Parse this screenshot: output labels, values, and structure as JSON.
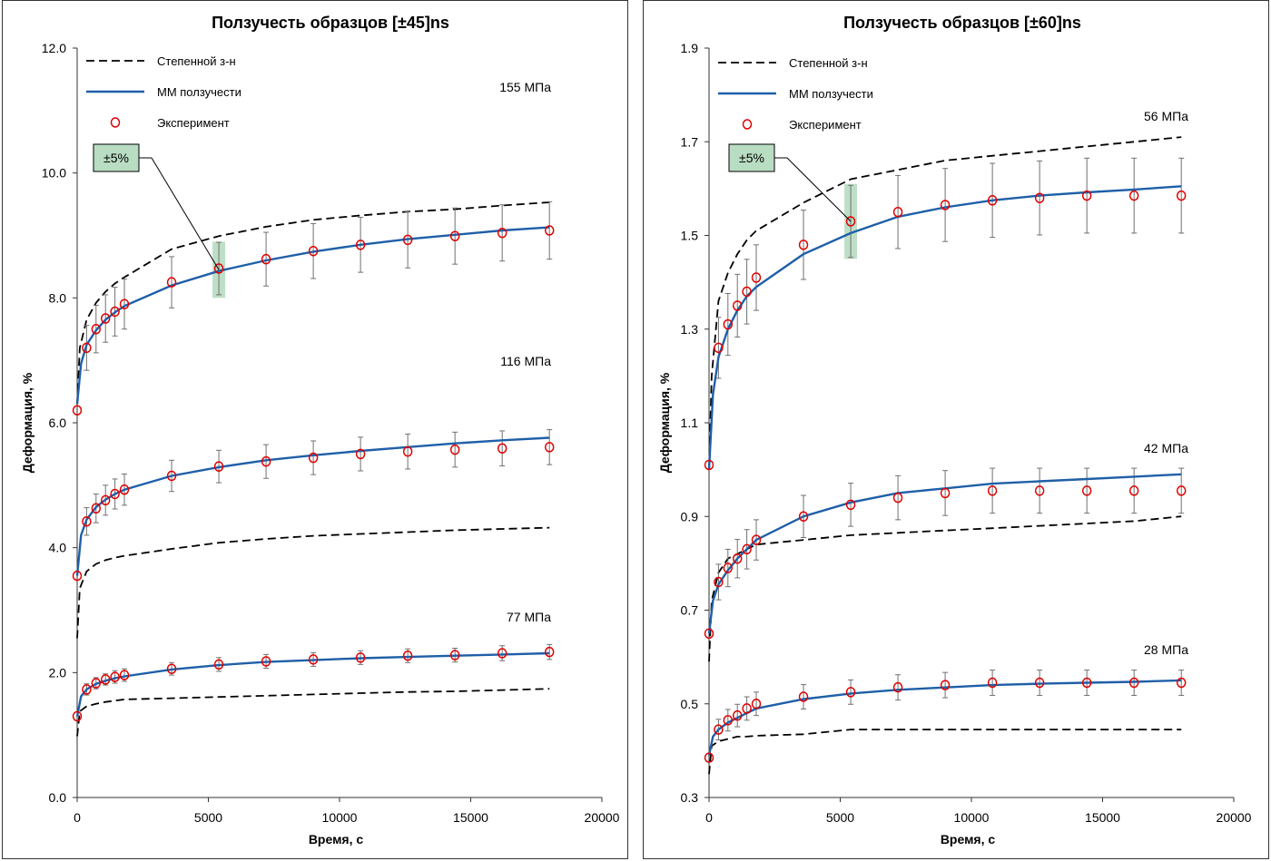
{
  "colors": {
    "model": "#1f5fa8",
    "power_law": "#000000",
    "experiment": "#e00000",
    "band": "#a8d4b4",
    "errorbar": "#707070"
  },
  "chart_data": [
    {
      "type": "line",
      "title": "Ползучесть образцов [±45]ns",
      "xlabel": "Время, с",
      "ylabel": "Деформация, %",
      "xlim": [
        0,
        20000
      ],
      "ylim": [
        0,
        12
      ],
      "x_ticks": [
        "0",
        "5000",
        "10000",
        "15000",
        "20000"
      ],
      "y_ticks": [
        "0.0",
        "2.0",
        "4.0",
        "6.0",
        "8.0",
        "10.0",
        "12.0"
      ],
      "legend": [
        "Степенной з-н",
        "ММ ползучести",
        "Эксперимент"
      ],
      "legend_position": "top-left",
      "grid": false,
      "tolerance_label": "±5%",
      "tolerance_point": {
        "x": 5400,
        "y": 8.45,
        "ylow": 8.0,
        "yhigh": 8.9
      },
      "groups": [
        {
          "label": "155 МПа",
          "exp_x": [
            0,
            360,
            720,
            1080,
            1440,
            1800,
            3600,
            5400,
            7200,
            9000,
            10800,
            12600,
            14400,
            16200,
            18000
          ],
          "exp_y": [
            6.2,
            7.2,
            7.5,
            7.67,
            7.78,
            7.9,
            8.25,
            8.47,
            8.62,
            8.75,
            8.85,
            8.93,
            8.99,
            9.04,
            9.08
          ],
          "err": [
            0,
            0.36,
            0.38,
            0.38,
            0.39,
            0.4,
            0.41,
            0.42,
            0.43,
            0.44,
            0.44,
            0.45,
            0.45,
            0.45,
            0.46
          ],
          "model_x": [
            0,
            150,
            360,
            720,
            1080,
            1440,
            1800,
            3600,
            5400,
            7200,
            9000,
            10800,
            12600,
            14400,
            16200,
            18000
          ],
          "model_y": [
            6.3,
            6.95,
            7.25,
            7.48,
            7.65,
            7.77,
            7.87,
            8.2,
            8.43,
            8.6,
            8.74,
            8.85,
            8.94,
            9.01,
            9.08,
            9.13
          ],
          "power_x": [
            0,
            100,
            360,
            720,
            1080,
            1440,
            1800,
            3600,
            5400,
            7200,
            9000,
            10800,
            12600,
            14400,
            16200,
            18000
          ],
          "power_y": [
            6.3,
            7.2,
            7.65,
            7.92,
            8.1,
            8.23,
            8.33,
            8.78,
            8.99,
            9.14,
            9.25,
            9.32,
            9.38,
            9.42,
            9.48,
            9.53
          ]
        },
        {
          "label": "116 МПа",
          "exp_x": [
            0,
            360,
            720,
            1080,
            1440,
            1800,
            3600,
            5400,
            7200,
            9000,
            10800,
            12600,
            14400,
            16200,
            18000
          ],
          "exp_y": [
            3.55,
            4.42,
            4.63,
            4.76,
            4.86,
            4.93,
            5.15,
            5.3,
            5.38,
            5.44,
            5.5,
            5.54,
            5.57,
            5.59,
            5.61
          ],
          "err": [
            0,
            0.22,
            0.23,
            0.24,
            0.24,
            0.25,
            0.25,
            0.26,
            0.27,
            0.27,
            0.27,
            0.28,
            0.28,
            0.28,
            0.28
          ],
          "model_x": [
            0,
            150,
            360,
            720,
            1080,
            1440,
            1800,
            3600,
            5400,
            7200,
            9000,
            10800,
            12600,
            14400,
            16200,
            18000
          ],
          "model_y": [
            3.55,
            4.2,
            4.45,
            4.65,
            4.77,
            4.86,
            4.93,
            5.15,
            5.29,
            5.4,
            5.48,
            5.55,
            5.61,
            5.67,
            5.72,
            5.76
          ],
          "power_x": [
            0,
            100,
            360,
            720,
            1080,
            1440,
            1800,
            3600,
            5400,
            7200,
            9000,
            10800,
            12600,
            14400,
            16200,
            18000
          ],
          "power_y": [
            2.55,
            3.35,
            3.62,
            3.74,
            3.8,
            3.84,
            3.87,
            3.98,
            4.08,
            4.14,
            4.19,
            4.22,
            4.25,
            4.28,
            4.3,
            4.32
          ]
        },
        {
          "label": "77 МПа",
          "exp_x": [
            0,
            360,
            720,
            1080,
            1440,
            1800,
            3600,
            5400,
            7200,
            9000,
            10800,
            12600,
            14400,
            16200,
            18000
          ],
          "exp_y": [
            1.3,
            1.73,
            1.83,
            1.89,
            1.93,
            1.96,
            2.06,
            2.13,
            2.18,
            2.21,
            2.24,
            2.27,
            2.28,
            2.31,
            2.33
          ],
          "err": [
            0,
            0.09,
            0.09,
            0.09,
            0.1,
            0.1,
            0.1,
            0.11,
            0.11,
            0.11,
            0.11,
            0.11,
            0.11,
            0.12,
            0.12
          ],
          "model_x": [
            0,
            150,
            360,
            720,
            1080,
            1440,
            1800,
            3600,
            5400,
            7200,
            9000,
            10800,
            12600,
            14400,
            16200,
            18000
          ],
          "model_y": [
            1.3,
            1.62,
            1.73,
            1.82,
            1.87,
            1.91,
            1.94,
            2.05,
            2.12,
            2.17,
            2.2,
            2.23,
            2.25,
            2.27,
            2.29,
            2.31
          ],
          "power_x": [
            0,
            100,
            360,
            720,
            1080,
            1440,
            1800,
            3600,
            5400,
            7200,
            9000,
            10800,
            12600,
            14400,
            16200,
            18000
          ],
          "power_y": [
            0.98,
            1.38,
            1.46,
            1.5,
            1.53,
            1.55,
            1.57,
            1.59,
            1.61,
            1.63,
            1.65,
            1.67,
            1.69,
            1.7,
            1.72,
            1.74
          ]
        }
      ]
    },
    {
      "type": "line",
      "title": "Ползучесть образцов [±60]ns",
      "xlabel": "Время, с",
      "ylabel": "Деформация, %",
      "xlim": [
        0,
        20000
      ],
      "ylim": [
        0.3,
        1.9
      ],
      "x_ticks": [
        "0",
        "5000",
        "10000",
        "15000",
        "20000"
      ],
      "y_ticks": [
        "0.3",
        "0.5",
        "0.7",
        "0.9",
        "1.1",
        "1.3",
        "1.5",
        "1.7",
        "1.9"
      ],
      "legend": [
        "Степенной з-н",
        "ММ ползучести",
        "Эксперимент"
      ],
      "legend_position": "top-left",
      "grid": false,
      "tolerance_label": "±5%",
      "tolerance_point": {
        "x": 5400,
        "y": 1.53,
        "ylow": 1.45,
        "yhigh": 1.61
      },
      "groups": [
        {
          "label": "56 МПа",
          "exp_x": [
            0,
            360,
            720,
            1080,
            1440,
            1800,
            3600,
            5400,
            7200,
            9000,
            10800,
            12600,
            14400,
            16200,
            18000
          ],
          "exp_y": [
            1.01,
            1.26,
            1.31,
            1.35,
            1.38,
            1.41,
            1.48,
            1.53,
            1.55,
            1.565,
            1.575,
            1.58,
            1.585,
            1.585,
            1.585
          ],
          "err": [
            0,
            0.065,
            0.066,
            0.067,
            0.069,
            0.07,
            0.074,
            0.077,
            0.078,
            0.078,
            0.079,
            0.079,
            0.08,
            0.08,
            0.08
          ],
          "model_x": [
            0,
            150,
            360,
            720,
            1080,
            1440,
            1800,
            3600,
            5400,
            7200,
            9000,
            10800,
            12600,
            14400,
            16200,
            18000
          ],
          "model_y": [
            1.0,
            1.16,
            1.24,
            1.3,
            1.34,
            1.37,
            1.39,
            1.46,
            1.505,
            1.54,
            1.56,
            1.575,
            1.585,
            1.592,
            1.598,
            1.605
          ],
          "power_x": [
            0,
            100,
            360,
            720,
            1080,
            1440,
            1800,
            3600,
            5400,
            7200,
            9000,
            10800,
            12600,
            14400,
            16200,
            18000
          ],
          "power_y": [
            1.0,
            1.2,
            1.36,
            1.42,
            1.46,
            1.49,
            1.51,
            1.57,
            1.62,
            1.64,
            1.66,
            1.67,
            1.68,
            1.69,
            1.7,
            1.71
          ]
        },
        {
          "label": "42 МПа",
          "exp_x": [
            0,
            360,
            720,
            1080,
            1440,
            1800,
            3600,
            5400,
            7200,
            9000,
            10800,
            12600,
            14400,
            16200,
            18000
          ],
          "exp_y": [
            0.65,
            0.76,
            0.79,
            0.81,
            0.83,
            0.85,
            0.9,
            0.925,
            0.94,
            0.95,
            0.955,
            0.955,
            0.955,
            0.955,
            0.955
          ],
          "err": [
            0,
            0.038,
            0.04,
            0.041,
            0.042,
            0.043,
            0.045,
            0.046,
            0.047,
            0.048,
            0.048,
            0.048,
            0.048,
            0.048,
            0.048
          ],
          "model_x": [
            0,
            150,
            360,
            720,
            1080,
            1440,
            1800,
            3600,
            5400,
            7200,
            9000,
            10800,
            12600,
            14400,
            16200,
            18000
          ],
          "model_y": [
            0.65,
            0.72,
            0.755,
            0.785,
            0.81,
            0.83,
            0.85,
            0.9,
            0.93,
            0.95,
            0.96,
            0.97,
            0.975,
            0.98,
            0.985,
            0.99
          ],
          "power_x": [
            0,
            100,
            360,
            720,
            1080,
            1440,
            1800,
            3600,
            5400,
            7200,
            9000,
            10800,
            12600,
            14400,
            16200,
            18000
          ],
          "power_y": [
            0.59,
            0.72,
            0.78,
            0.81,
            0.82,
            0.83,
            0.84,
            0.85,
            0.86,
            0.865,
            0.87,
            0.875,
            0.88,
            0.885,
            0.89,
            0.9
          ]
        },
        {
          "label": "28 МПа",
          "exp_x": [
            0,
            360,
            720,
            1080,
            1440,
            1800,
            3600,
            5400,
            7200,
            9000,
            10800,
            12600,
            14400,
            16200,
            18000
          ],
          "exp_y": [
            0.385,
            0.445,
            0.465,
            0.475,
            0.49,
            0.5,
            0.515,
            0.525,
            0.535,
            0.54,
            0.545,
            0.545,
            0.545,
            0.545,
            0.545
          ],
          "err": [
            0,
            0.022,
            0.023,
            0.024,
            0.025,
            0.025,
            0.026,
            0.026,
            0.027,
            0.027,
            0.027,
            0.027,
            0.027,
            0.027,
            0.027
          ],
          "model_x": [
            0,
            150,
            360,
            720,
            1080,
            1440,
            1800,
            3600,
            5400,
            7200,
            9000,
            10800,
            12600,
            14400,
            16200,
            18000
          ],
          "model_y": [
            0.39,
            0.43,
            0.445,
            0.46,
            0.47,
            0.48,
            0.49,
            0.51,
            0.522,
            0.53,
            0.535,
            0.54,
            0.543,
            0.545,
            0.547,
            0.55
          ],
          "power_x": [
            0,
            100,
            360,
            720,
            1080,
            1440,
            1800,
            3600,
            5400,
            7200,
            9000,
            10800,
            12600,
            14400,
            16200,
            18000
          ],
          "power_y": [
            0.35,
            0.41,
            0.42,
            0.425,
            0.43,
            0.43,
            0.432,
            0.435,
            0.445,
            0.445,
            0.445,
            0.445,
            0.445,
            0.445,
            0.445,
            0.445
          ]
        }
      ]
    }
  ]
}
